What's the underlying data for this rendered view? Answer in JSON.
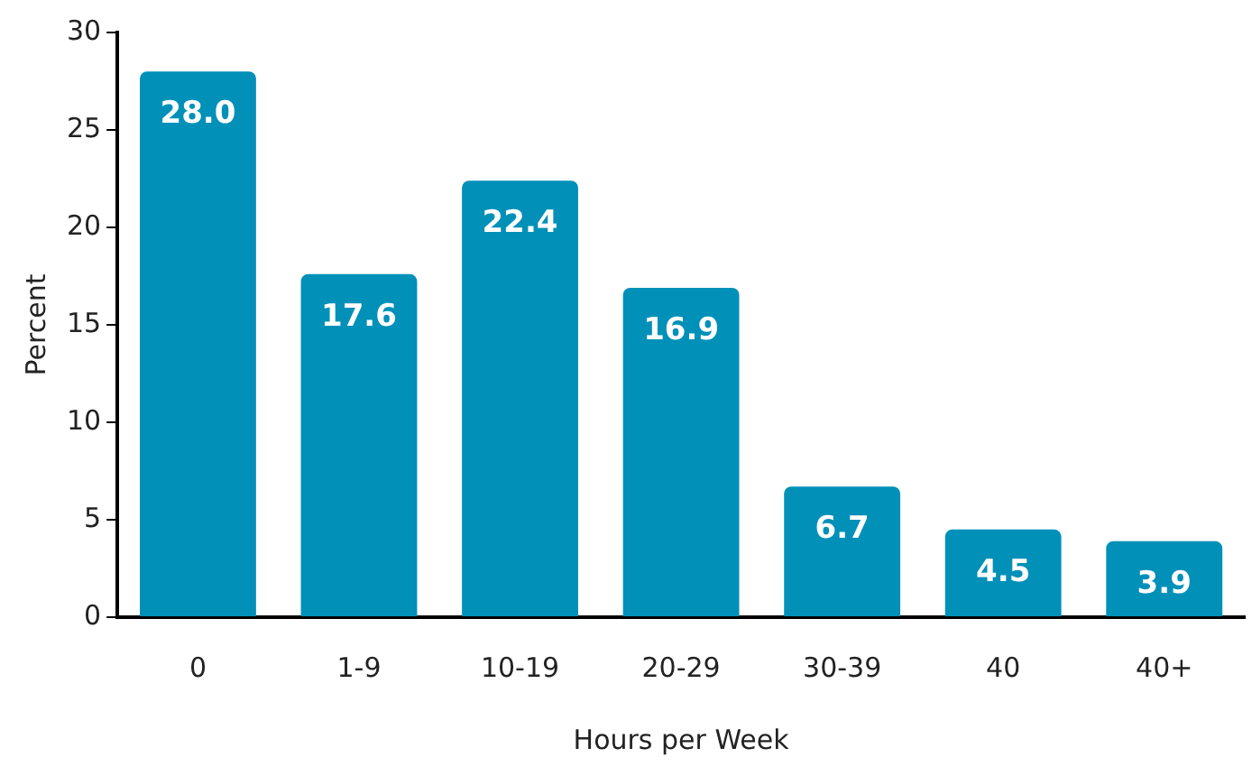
{
  "chart_data": {
    "type": "bar",
    "xlabel": "Hours per Week",
    "ylabel": "Percent",
    "categories": [
      "0",
      "1-9",
      "10-19",
      "20-29",
      "30-39",
      "40",
      "40+"
    ],
    "values": [
      28.0,
      17.6,
      22.4,
      16.9,
      6.7,
      4.5,
      3.9
    ],
    "value_labels": [
      "28.0",
      "17.6",
      "22.4",
      "16.9",
      "6.7",
      "4.5",
      "3.9"
    ],
    "color": "#0090b8",
    "ylim": [
      0,
      30
    ],
    "yticks": [
      0,
      5,
      10,
      15,
      20,
      25,
      30
    ],
    "grid": false,
    "legend": false
  }
}
